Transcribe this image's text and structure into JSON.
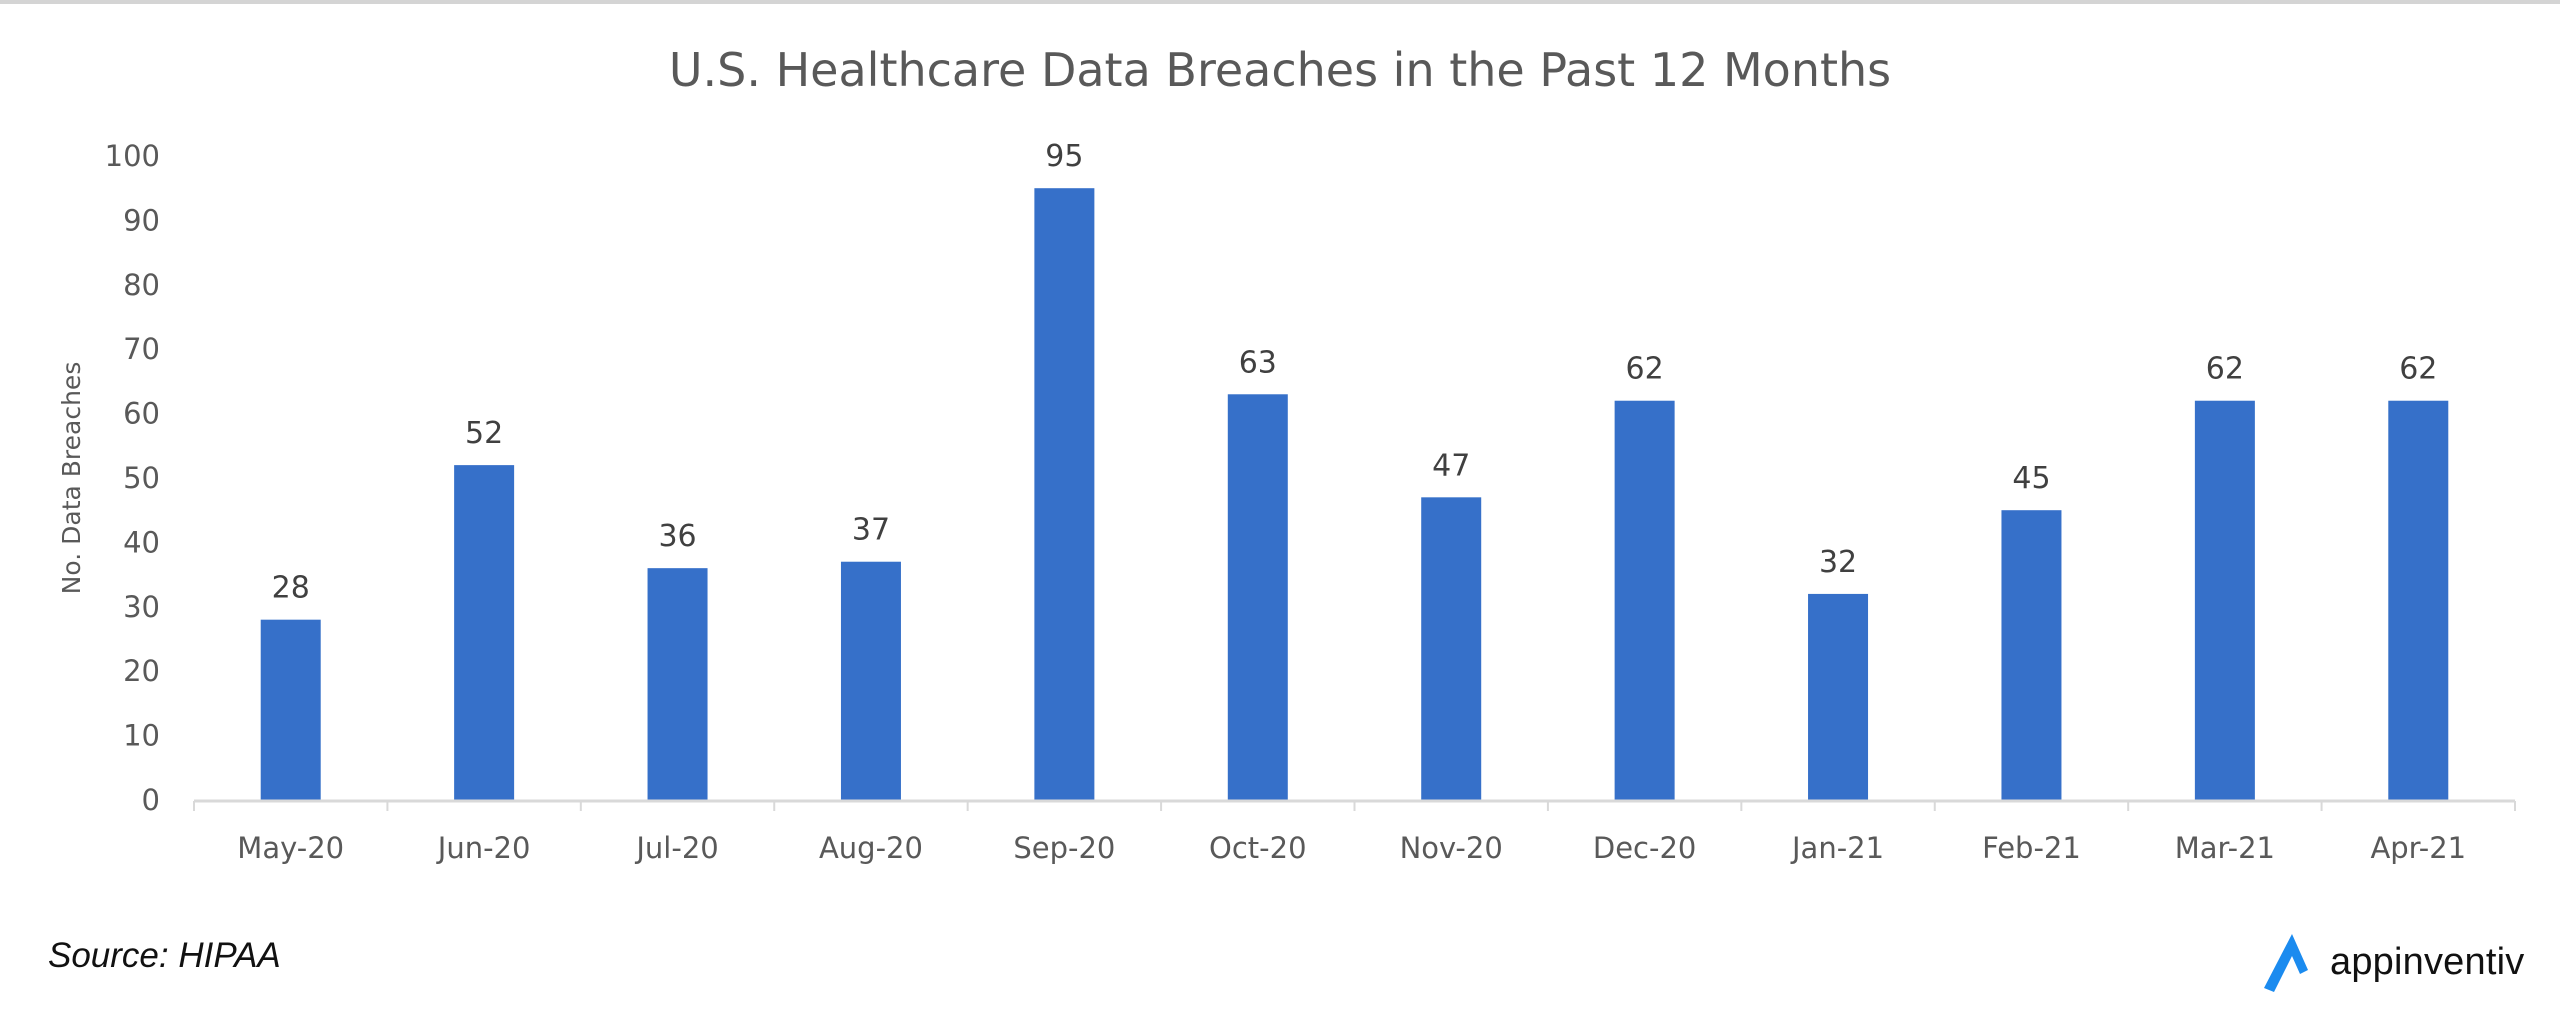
{
  "chart_data": {
    "type": "bar",
    "title": "U.S. Healthcare Data Breaches in the Past 12 Months",
    "xlabel": "",
    "ylabel": "No. Data Breaches",
    "categories": [
      "May-20",
      "Jun-20",
      "Jul-20",
      "Aug-20",
      "Sep-20",
      "Oct-20",
      "Nov-20",
      "Dec-20",
      "Jan-21",
      "Feb-21",
      "Mar-21",
      "Apr-21"
    ],
    "values": [
      28,
      52,
      36,
      37,
      95,
      63,
      47,
      62,
      32,
      45,
      62,
      62
    ],
    "ylim": [
      0,
      100
    ],
    "yticks": [
      0,
      10,
      20,
      30,
      40,
      50,
      60,
      70,
      80,
      90,
      100
    ],
    "grid": false,
    "legend": "none",
    "bar_color": "#3670C9",
    "data_labels": true
  },
  "footer": {
    "source": "Source: HIPAA",
    "logo_text": "appinventiv",
    "logo_icon": "appinventiv-logo-icon",
    "logo_color": "#1B8BEF"
  }
}
